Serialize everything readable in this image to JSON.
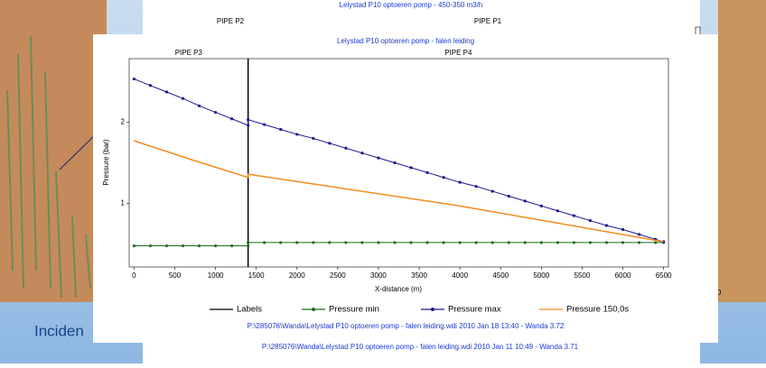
{
  "slide": {
    "text": "Inciden"
  },
  "background_chart": {
    "title": "Lelystad P10 optoeren pomp - 450-350 m3/h",
    "pipes": [
      "PIPE P2",
      "PIPE P1"
    ],
    "x_tick": "6500",
    "y_tick": "0",
    "footer": "P:\\285076\\Wanda\\Lelystad P10 optoeren pomp - falen leiding.wdi  2010 Jan 11  10:49 -  Wanda 3.71"
  },
  "chart_data": {
    "type": "line",
    "title": "Lelystad P10 optoeren pomp - falen leiding",
    "x_label": "X-distance (m)",
    "y_label": "Pressure (bar)",
    "xlim": [
      -60,
      6560
    ],
    "ylim": [
      0.22,
      2.78
    ],
    "xticks": [
      0,
      500,
      1000,
      1500,
      2000,
      2500,
      3000,
      3500,
      4000,
      4500,
      5000,
      5500,
      6000,
      6500
    ],
    "yticks": [
      1,
      2
    ],
    "pipes": [
      "PIPE P3",
      "PIPE P4"
    ],
    "x": [
      0,
      200,
      400,
      600,
      800,
      1000,
      1200,
      1400,
      1400,
      1600,
      1800,
      2000,
      2200,
      2400,
      2600,
      2800,
      3000,
      3200,
      3400,
      3600,
      3800,
      4000,
      4200,
      4400,
      4600,
      4800,
      5000,
      5200,
      5400,
      5600,
      5800,
      6000,
      6200,
      6400,
      6500
    ],
    "series": [
      {
        "name": "Labels",
        "color": "#000000",
        "x": [
          1400,
          1400
        ],
        "values": [
          2.78,
          0.22
        ]
      },
      {
        "name": "Pressure min",
        "color": "#1f6b1f",
        "markers": true,
        "values": [
          0.48,
          0.48,
          0.48,
          0.48,
          0.48,
          0.48,
          0.48,
          0.48,
          0.52,
          0.52,
          0.52,
          0.52,
          0.52,
          0.52,
          0.52,
          0.52,
          0.52,
          0.52,
          0.52,
          0.52,
          0.52,
          0.52,
          0.52,
          0.52,
          0.52,
          0.52,
          0.52,
          0.52,
          0.52,
          0.52,
          0.52,
          0.52,
          0.52,
          0.52,
          0.52
        ]
      },
      {
        "name": "Pressure max",
        "color": "#1a1a8c",
        "markers": true,
        "values": [
          2.53,
          2.45,
          2.37,
          2.29,
          2.2,
          2.12,
          2.04,
          1.96,
          2.03,
          1.97,
          1.91,
          1.85,
          1.8,
          1.74,
          1.68,
          1.62,
          1.56,
          1.5,
          1.44,
          1.38,
          1.32,
          1.26,
          1.21,
          1.15,
          1.09,
          1.03,
          0.97,
          0.91,
          0.85,
          0.79,
          0.73,
          0.68,
          0.62,
          0.56,
          0.53
        ]
      },
      {
        "name": "Pressure 150,0s",
        "color": "#f28c1c",
        "x": [
          0,
          700,
          1400,
          1400,
          4000,
          6500
        ],
        "values": [
          1.77,
          1.54,
          1.32,
          1.36,
          0.97,
          0.53
        ]
      }
    ],
    "footer": "P:\\285076\\Wanda\\Lelystad P10 optoeren pomp - falen leiding.wdi  2010 Jan 18  13:40 -  Wanda 3.72"
  }
}
